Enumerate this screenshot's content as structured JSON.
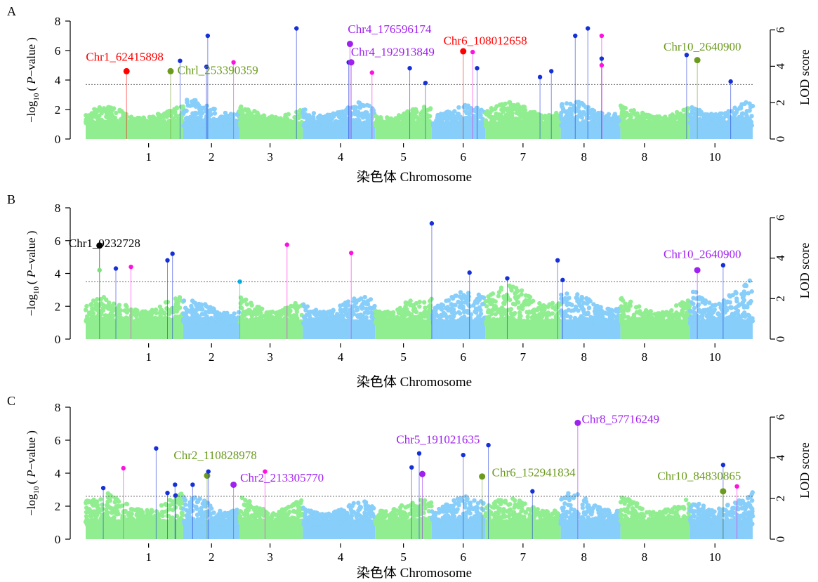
{
  "colors": {
    "green": "#90EE90",
    "blue": "#87CEFA",
    "threshold": "#555555",
    "red": "#FF0000",
    "olive": "#6B9A1E",
    "purple": "#A020F0",
    "black": "#000000"
  },
  "chart_data": [
    {
      "panel_label": "A",
      "type": "scatter",
      "xlabel": "染色体 Chromosome",
      "ylabel_prefix": "−log",
      "ylabel_sub": "10",
      "ylabel_suffix": "( P−value )",
      "y2label": "LOD score",
      "ylim": [
        0,
        8
      ],
      "yticks": [
        0,
        2,
        4,
        6,
        8
      ],
      "y2ticks": [
        0,
        2,
        4,
        6
      ],
      "xtick_labels": [
        "1",
        "2",
        "3",
        "4",
        "5",
        "6",
        "7",
        "8",
        "8",
        "10"
      ],
      "threshold": 3.7,
      "background_max": [
        1.6,
        2.1,
        1.7,
        1.9,
        1.6,
        1.7,
        1.9,
        2.0,
        1.7,
        2.0
      ],
      "peaks": [
        {
          "x": 0.65,
          "y": 4.6,
          "color": "red"
        },
        {
          "x": 1.35,
          "y": 4.6,
          "color": "olive"
        },
        {
          "x": 1.5,
          "y": 5.3,
          "color": "blue"
        },
        {
          "x": 1.92,
          "y": 4.9,
          "color": "blue"
        },
        {
          "x": 1.94,
          "y": 7.0,
          "color": "blue"
        },
        {
          "x": 2.35,
          "y": 5.2,
          "color": "magenta"
        },
        {
          "x": 3.35,
          "y": 7.5,
          "color": "blue"
        },
        {
          "x": 4.18,
          "y": 5.2,
          "color": "blue"
        },
        {
          "x": 4.2,
          "y": 6.45,
          "color": "purple"
        },
        {
          "x": 4.22,
          "y": 5.2,
          "color": "purple"
        },
        {
          "x": 4.55,
          "y": 4.5,
          "color": "magenta"
        },
        {
          "x": 5.15,
          "y": 4.8,
          "color": "blue"
        },
        {
          "x": 5.4,
          "y": 3.8,
          "color": "blue"
        },
        {
          "x": 6.0,
          "y": 5.95,
          "color": "red"
        },
        {
          "x": 6.15,
          "y": 5.9,
          "color": "magenta"
        },
        {
          "x": 6.22,
          "y": 4.8,
          "color": "blue"
        },
        {
          "x": 7.22,
          "y": 4.2,
          "color": "blue"
        },
        {
          "x": 7.4,
          "y": 4.6,
          "color": "blue"
        },
        {
          "x": 7.78,
          "y": 7.0,
          "color": "blue"
        },
        {
          "x": 7.98,
          "y": 7.5,
          "color": "blue"
        },
        {
          "x": 8.2,
          "y": 7.0,
          "color": "magenta"
        },
        {
          "x": 8.2,
          "y": 5.45,
          "color": "blue"
        },
        {
          "x": 8.2,
          "y": 5.0,
          "color": "magenta"
        },
        {
          "x": 9.55,
          "y": 5.7,
          "color": "blue"
        },
        {
          "x": 9.72,
          "y": 5.35,
          "color": "olive"
        },
        {
          "x": 10.25,
          "y": 3.9,
          "color": "blue"
        }
      ],
      "labels": [
        {
          "text": "Chr1_62415898",
          "x": 0.62,
          "y": 5.3,
          "color": "red"
        },
        {
          "text": "Chrl_253390359",
          "x": 2.1,
          "y": 4.4,
          "color": "olive"
        },
        {
          "text": "Chr4_176596174",
          "x": 4.83,
          "y": 7.2,
          "color": "purple"
        },
        {
          "text": "Chr4_192913849",
          "x": 4.88,
          "y": 5.65,
          "color": "purple"
        },
        {
          "text": "Chr6_108012658",
          "x": 6.35,
          "y": 6.4,
          "color": "red"
        },
        {
          "text": "Chr10_2640900",
          "x": 9.8,
          "y": 6.0,
          "color": "olive"
        }
      ]
    },
    {
      "panel_label": "B",
      "type": "scatter",
      "xlabel": "染色体 Chromosome",
      "ylabel_prefix": "−log",
      "ylabel_sub": "10",
      "ylabel_suffix": "( P−value )",
      "y2label": "LOD score",
      "ylim": [
        0,
        8
      ],
      "yticks": [
        0,
        2,
        4,
        6,
        8
      ],
      "y2ticks": [
        0,
        2,
        4,
        6
      ],
      "xtick_labels": [
        "1",
        "2",
        "3",
        "4",
        "5",
        "6",
        "7",
        "8",
        "8",
        "10"
      ],
      "threshold": 3.5,
      "background_max": [
        2.0,
        1.8,
        2.0,
        2.0,
        2.0,
        2.4,
        2.8,
        2.3,
        1.9,
        3.0
      ],
      "peaks": [
        {
          "x": 0.22,
          "y": 5.7,
          "color": "black"
        },
        {
          "x": 0.22,
          "y": 4.2,
          "color": "green"
        },
        {
          "x": 0.48,
          "y": 4.3,
          "color": "blue"
        },
        {
          "x": 0.72,
          "y": 4.4,
          "color": "magenta"
        },
        {
          "x": 1.3,
          "y": 4.8,
          "color": "blue"
        },
        {
          "x": 1.38,
          "y": 5.2,
          "color": "blue"
        },
        {
          "x": 2.45,
          "y": 3.5,
          "color": "cyan"
        },
        {
          "x": 3.2,
          "y": 5.75,
          "color": "magenta"
        },
        {
          "x": 4.22,
          "y": 5.25,
          "color": "magenta"
        },
        {
          "x": 5.5,
          "y": 7.05,
          "color": "blue"
        },
        {
          "x": 6.1,
          "y": 4.05,
          "color": "blue"
        },
        {
          "x": 6.7,
          "y": 3.7,
          "color": "blue"
        },
        {
          "x": 7.5,
          "y": 4.8,
          "color": "blue"
        },
        {
          "x": 7.58,
          "y": 3.6,
          "color": "blue"
        },
        {
          "x": 9.72,
          "y": 4.2,
          "color": "purple"
        },
        {
          "x": 10.13,
          "y": 4.5,
          "color": "blue"
        }
      ],
      "labels": [
        {
          "text": "Chr1_9232728",
          "x": 0.3,
          "y": 5.6,
          "color": "black"
        },
        {
          "text": "Chr10_2640900",
          "x": 9.8,
          "y": 4.95,
          "color": "purple"
        }
      ]
    },
    {
      "panel_label": "C",
      "type": "scatter",
      "xlabel": "染色体 Chromosome",
      "ylabel_prefix": "−log",
      "ylabel_sub": "10",
      "ylabel_suffix": "( P−value )",
      "y2label": "LOD score",
      "ylim": [
        0,
        8
      ],
      "yticks": [
        0,
        2,
        4,
        6,
        8
      ],
      "y2ticks": [
        0,
        2,
        4,
        6
      ],
      "xtick_labels": [
        "1",
        "2",
        "3",
        "4",
        "5",
        "6",
        "7",
        "8",
        "8",
        "10"
      ],
      "threshold": 2.6,
      "background_max": [
        2.2,
        2.0,
        2.0,
        1.7,
        2.0,
        2.0,
        2.0,
        2.2,
        2.0,
        2.3
      ],
      "peaks": [
        {
          "x": 0.28,
          "y": 3.1,
          "color": "blue"
        },
        {
          "x": 0.6,
          "y": 4.3,
          "color": "magenta"
        },
        {
          "x": 1.12,
          "y": 5.5,
          "color": "blue"
        },
        {
          "x": 1.3,
          "y": 2.8,
          "color": "blue"
        },
        {
          "x": 1.42,
          "y": 3.3,
          "color": "blue"
        },
        {
          "x": 1.43,
          "y": 2.65,
          "color": "blue"
        },
        {
          "x": 1.7,
          "y": 3.3,
          "color": "blue"
        },
        {
          "x": 1.93,
          "y": 3.85,
          "color": "olive"
        },
        {
          "x": 1.95,
          "y": 4.1,
          "color": "blue"
        },
        {
          "x": 2.35,
          "y": 3.3,
          "color": "purple"
        },
        {
          "x": 2.85,
          "y": 4.1,
          "color": "magenta"
        },
        {
          "x": 5.18,
          "y": 4.35,
          "color": "blue"
        },
        {
          "x": 5.3,
          "y": 5.2,
          "color": "blue"
        },
        {
          "x": 5.35,
          "y": 3.95,
          "color": "purple"
        },
        {
          "x": 6.0,
          "y": 5.1,
          "color": "blue"
        },
        {
          "x": 6.3,
          "y": 3.8,
          "color": "olive"
        },
        {
          "x": 6.4,
          "y": 5.7,
          "color": "blue"
        },
        {
          "x": 7.1,
          "y": 2.9,
          "color": "blue"
        },
        {
          "x": 7.82,
          "y": 7.05,
          "color": "purple"
        },
        {
          "x": 10.13,
          "y": 4.5,
          "color": "blue"
        },
        {
          "x": 10.13,
          "y": 2.9,
          "color": "olive"
        },
        {
          "x": 10.35,
          "y": 3.2,
          "color": "magenta"
        }
      ],
      "labels": [
        {
          "text": "Chr2_110828978",
          "x": 2.06,
          "y": 4.85,
          "color": "olive"
        },
        {
          "text": "Chr2_213305770",
          "x": 3.12,
          "y": 3.5,
          "color": "purple"
        },
        {
          "text": "Chr5_191021635",
          "x": 5.6,
          "y": 5.8,
          "color": "purple"
        },
        {
          "text": "Chr6_152941834",
          "x": 7.12,
          "y": 3.8,
          "color": "olive"
        },
        {
          "text": "Chr8_57716249",
          "x": 8.5,
          "y": 7.05,
          "color": "purple"
        },
        {
          "text": "Chr10_84830865",
          "x": 9.75,
          "y": 3.6,
          "color": "olive"
        }
      ]
    }
  ]
}
